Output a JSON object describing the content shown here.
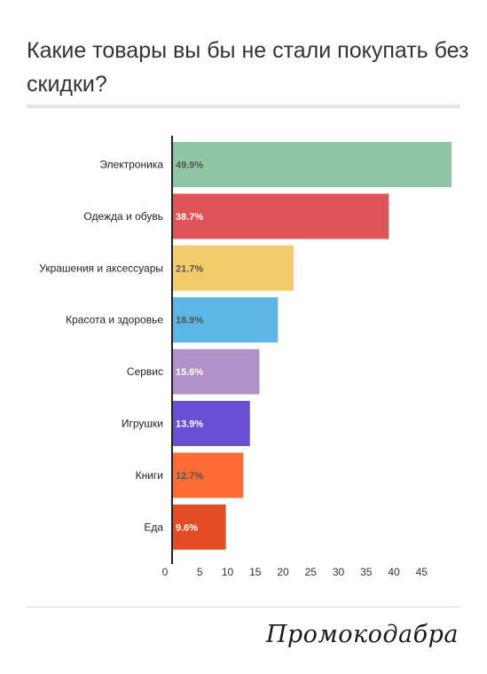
{
  "header": {
    "title": "Какие товары вы бы не стали покупать без скидки?"
  },
  "brand": {
    "logo_text": "Промокодабра"
  },
  "chart_data": {
    "type": "bar",
    "orientation": "horizontal",
    "title": "Какие товары вы бы не стали покупать без скидки?",
    "categories": [
      "Электроника",
      "Одежда и обувь",
      "Украшения и аксессуары",
      "Красота и здоровье",
      "Сервис",
      "Игрушки",
      "Книги",
      "Еда"
    ],
    "values": [
      49.9,
      38.7,
      21.7,
      18.9,
      15.6,
      13.9,
      12.7,
      9.6
    ],
    "value_labels": [
      "49.9%",
      "38.7%",
      "21.7%",
      "18.9%",
      "15.6%",
      "13.9%",
      "12.7%",
      "9.6%"
    ],
    "colors": [
      "#8fc4a4",
      "#de5459",
      "#f2cb6b",
      "#5cb7e6",
      "#b291c9",
      "#6a4fd4",
      "#ff6b35",
      "#e44d24"
    ],
    "label_colors": [
      "#555555",
      "#ffffff",
      "#555555",
      "#555555",
      "#ffffff",
      "#ffffff",
      "#555555",
      "#ffffff"
    ],
    "x_ticks": [
      0,
      5,
      10,
      15,
      20,
      25,
      30,
      35,
      40,
      45
    ],
    "xlim": [
      0,
      50
    ],
    "grid": false,
    "legend": false
  }
}
